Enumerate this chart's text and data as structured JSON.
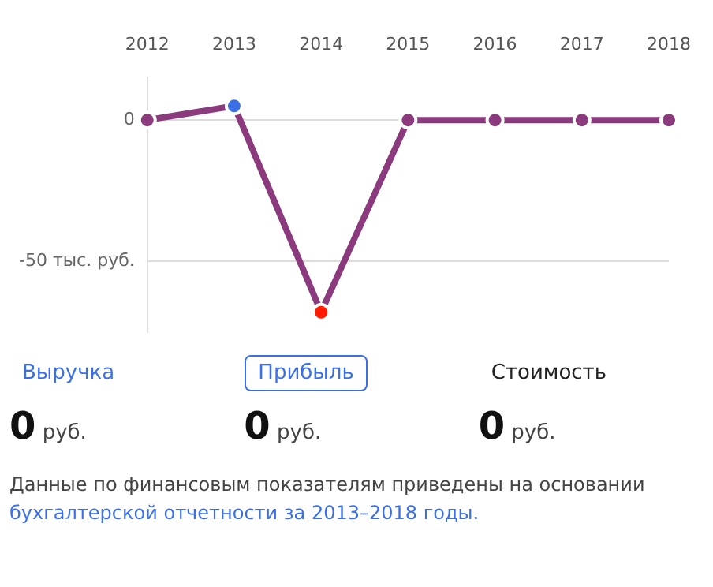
{
  "chart_data": {
    "type": "line",
    "categories": [
      "2012",
      "2013",
      "2014",
      "2015",
      "2016",
      "2017",
      "2018"
    ],
    "series": [
      {
        "color": "#8b3a7e",
        "colors": [
          "#8b3a7e",
          "#3b6fe8",
          "#ff1a00",
          "#8b3a7e",
          "#8b3a7e",
          "#8b3a7e",
          "#8b3a7e"
        ],
        "values": [
          0,
          5,
          -68,
          0,
          0,
          0,
          0
        ]
      }
    ],
    "ylim": [
      -75,
      15
    ],
    "yticks": [
      0,
      {
        "value": -50,
        "label": "-50 тыс. руб."
      }
    ],
    "grid": "y",
    "legend": false,
    "marker": "circle",
    "line_style": "solid",
    "annotations": [
      "Выручка",
      "Прибыль",
      "Стоимость",
      "0 руб.",
      "0 руб.",
      "0 руб.",
      "Данные по финансовым показателям приведены на основании",
      "бухгалтерской отчетности за 2013–2018 годы."
    ]
  }
}
